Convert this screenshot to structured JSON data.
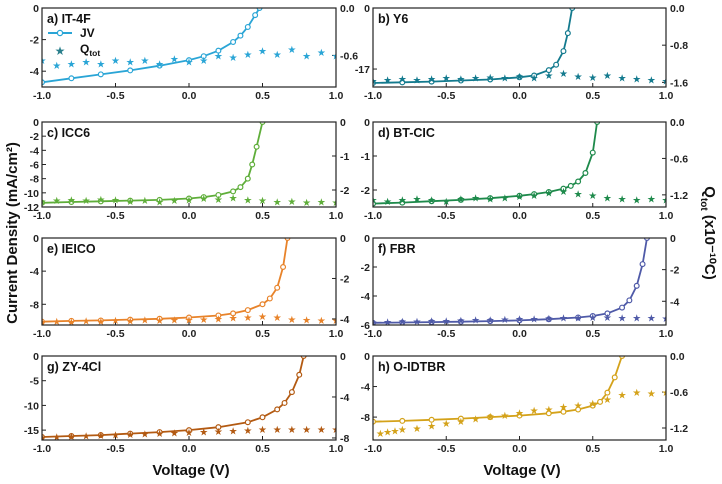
{
  "figure": {
    "xlabel": "Voltage (V)",
    "ylabel_left": "Current Density (mA/cm²)",
    "ylabel_right_main": "Q",
    "ylabel_right_sub": "tot",
    "ylabel_right_tail": " (x10⁻¹⁰C)",
    "legend": {
      "jv_label": "JV",
      "q_label": "Q",
      "q_sub": "tot"
    }
  },
  "chart_data": [
    {
      "id": "a",
      "title": "a) IT-4F",
      "type": "line",
      "color": "#2aa5d6",
      "xlim": [
        -1.0,
        1.0
      ],
      "xticks": [
        -1.0,
        -0.5,
        0.0,
        0.5,
        1.0
      ],
      "ylim_left": [
        -5,
        0
      ],
      "yticks_left": [
        -4,
        -2,
        0
      ],
      "yticklabels_left": [
        "-4",
        "-2",
        "0"
      ],
      "ylim_right": [
        -1.0,
        0.0
      ],
      "yticks_right": [
        -0.6,
        0.0
      ],
      "yticklabels_right": [
        "-0.6",
        "0.0"
      ],
      "jv": {
        "x": [
          -1.0,
          -0.8,
          -0.6,
          -0.4,
          -0.2,
          0.0,
          0.1,
          0.2,
          0.3,
          0.35,
          0.4,
          0.45,
          0.48
        ],
        "y": [
          -4.7,
          -4.45,
          -4.2,
          -3.95,
          -3.65,
          -3.3,
          -3.05,
          -2.7,
          -2.15,
          -1.75,
          -1.2,
          -0.45,
          0.0
        ]
      },
      "qtot": {
        "x": [
          -1.0,
          -0.9,
          -0.8,
          -0.7,
          -0.6,
          -0.5,
          -0.4,
          -0.3,
          -0.2,
          -0.1,
          0.0,
          0.1,
          0.2,
          0.3,
          0.4,
          0.5,
          0.6,
          0.7,
          0.8,
          0.9,
          1.0
        ],
        "y": [
          -0.66,
          -0.72,
          -0.7,
          -0.68,
          -0.7,
          -0.66,
          -0.68,
          -0.66,
          -0.7,
          -0.64,
          -0.68,
          -0.66,
          -0.6,
          -0.62,
          -0.58,
          -0.54,
          -0.58,
          -0.52,
          -0.6,
          -0.56,
          -0.6
        ]
      }
    },
    {
      "id": "b",
      "title": "b) Y6",
      "type": "line",
      "color": "#137a8e",
      "xlim": [
        -1.0,
        1.0
      ],
      "xticks": [
        -1.0,
        -0.5,
        0.0,
        0.5,
        1.0
      ],
      "ylim_left": [
        -22,
        0
      ],
      "yticks_left": [
        -17,
        0
      ],
      "yticklabels_left": [
        "-17",
        "0"
      ],
      "ylim_right": [
        -1.7,
        0.0
      ],
      "yticks_right": [
        -1.6,
        -0.8,
        0.0
      ],
      "yticklabels_right": [
        "-1.6",
        "-0.8",
        "0.0"
      ],
      "jv": {
        "x": [
          -1.0,
          -0.8,
          -0.6,
          -0.4,
          -0.2,
          0.0,
          0.1,
          0.2,
          0.25,
          0.3,
          0.33,
          0.36
        ],
        "y": [
          -20.9,
          -20.7,
          -20.5,
          -20.2,
          -19.9,
          -19.3,
          -18.8,
          -17.3,
          -15.8,
          -12.0,
          -7.0,
          0.0
        ]
      },
      "qtot": {
        "x": [
          -1.0,
          -0.9,
          -0.8,
          -0.7,
          -0.6,
          -0.5,
          -0.4,
          -0.3,
          -0.2,
          -0.1,
          0.0,
          0.1,
          0.2,
          0.3,
          0.4,
          0.5,
          0.6,
          0.7,
          0.8,
          0.9,
          1.0
        ],
        "y": [
          -1.56,
          -1.54,
          -1.52,
          -1.54,
          -1.52,
          -1.5,
          -1.52,
          -1.5,
          -1.48,
          -1.5,
          -1.46,
          -1.5,
          -1.44,
          -1.4,
          -1.46,
          -1.48,
          -1.44,
          -1.5,
          -1.52,
          -1.54,
          -1.56
        ]
      }
    },
    {
      "id": "c",
      "title": "c) ICC6",
      "type": "line",
      "color": "#5fae3a",
      "xlim": [
        -1.0,
        1.0
      ],
      "xticks": [
        -1.0,
        -0.5,
        0.0,
        0.5,
        1.0
      ],
      "ylim_left": [
        -12,
        0
      ],
      "yticks_left": [
        -12,
        -10,
        -8,
        -6,
        -4,
        -2,
        0
      ],
      "yticklabels_left": [
        "-12",
        "-10",
        "-8",
        "-6",
        "-4",
        "-2",
        "0"
      ],
      "ylim_right": [
        -2.5,
        0.0
      ],
      "yticks_right": [
        -2,
        -1,
        0
      ],
      "yticklabels_right": [
        "-2",
        "-1",
        "0"
      ],
      "jv": {
        "x": [
          -1.0,
          -0.8,
          -0.6,
          -0.4,
          -0.2,
          0.0,
          0.1,
          0.2,
          0.3,
          0.35,
          0.4,
          0.43,
          0.46,
          0.5
        ],
        "y": [
          -11.4,
          -11.3,
          -11.2,
          -11.1,
          -11.0,
          -10.8,
          -10.6,
          -10.3,
          -9.8,
          -9.2,
          -8.0,
          -6.0,
          -3.5,
          0.0
        ]
      },
      "qtot": {
        "x": [
          -1.0,
          -0.9,
          -0.8,
          -0.7,
          -0.6,
          -0.5,
          -0.4,
          -0.3,
          -0.2,
          -0.1,
          0.0,
          0.1,
          0.2,
          0.3,
          0.4,
          0.5,
          0.6,
          0.7,
          0.8,
          0.9,
          1.0
        ],
        "y": [
          -2.32,
          -2.3,
          -2.28,
          -2.3,
          -2.26,
          -2.28,
          -2.32,
          -2.3,
          -2.34,
          -2.3,
          -2.28,
          -2.24,
          -2.26,
          -2.22,
          -2.28,
          -2.3,
          -2.34,
          -2.32,
          -2.36,
          -2.34,
          -2.36
        ]
      }
    },
    {
      "id": "d",
      "title": "d) BT-CIC",
      "type": "line",
      "color": "#1e8a4b",
      "xlim": [
        -1.0,
        1.0
      ],
      "xticks": [
        -1.0,
        -0.5,
        0.0,
        0.5,
        1.0
      ],
      "ylim_left": [
        -2.5,
        0
      ],
      "yticks_left": [
        -2,
        -1,
        0
      ],
      "yticklabels_left": [
        "-2",
        "-1",
        "0"
      ],
      "ylim_right": [
        -1.4,
        0.0
      ],
      "yticks_right": [
        -1.2,
        -0.6,
        0.0
      ],
      "yticklabels_right": [
        "-1.2",
        "-0.6",
        "0.0"
      ],
      "jv": {
        "x": [
          -1.0,
          -0.8,
          -0.6,
          -0.4,
          -0.2,
          0.0,
          0.1,
          0.2,
          0.3,
          0.35,
          0.4,
          0.45,
          0.5,
          0.53
        ],
        "y": [
          -2.4,
          -2.37,
          -2.33,
          -2.29,
          -2.24,
          -2.17,
          -2.12,
          -2.06,
          -1.96,
          -1.88,
          -1.75,
          -1.5,
          -0.9,
          0.0
        ]
      },
      "qtot": {
        "x": [
          -1.0,
          -0.9,
          -0.8,
          -0.7,
          -0.6,
          -0.5,
          -0.4,
          -0.3,
          -0.2,
          -0.1,
          0.0,
          0.1,
          0.2,
          0.3,
          0.4,
          0.5,
          0.6,
          0.7,
          0.8,
          0.9,
          1.0
        ],
        "y": [
          -1.28,
          -1.3,
          -1.28,
          -1.26,
          -1.28,
          -1.3,
          -1.26,
          -1.24,
          -1.26,
          -1.24,
          -1.22,
          -1.2,
          -1.16,
          -1.14,
          -1.18,
          -1.2,
          -1.24,
          -1.26,
          -1.28,
          -1.26,
          -1.28
        ]
      }
    },
    {
      "id": "e",
      "title": "e) IEICO",
      "type": "line",
      "color": "#e8832a",
      "xlim": [
        -1.0,
        1.0
      ],
      "xticks": [
        -1.0,
        -0.5,
        0.0,
        0.5,
        1.0
      ],
      "ylim_left": [
        -10.5,
        0
      ],
      "yticks_left": [
        -8,
        -4,
        0
      ],
      "yticklabels_left": [
        "-8",
        "-4",
        "0"
      ],
      "ylim_right": [
        -4.3,
        0.0
      ],
      "yticks_right": [
        -4,
        -2,
        0
      ],
      "yticklabels_right": [
        "-4",
        "-2",
        "0"
      ],
      "jv": {
        "x": [
          -1.0,
          -0.8,
          -0.6,
          -0.4,
          -0.2,
          0.0,
          0.2,
          0.3,
          0.4,
          0.5,
          0.55,
          0.6,
          0.64,
          0.67
        ],
        "y": [
          -10.1,
          -10.0,
          -9.95,
          -9.85,
          -9.75,
          -9.6,
          -9.35,
          -9.1,
          -8.7,
          -8.0,
          -7.3,
          -6.0,
          -3.5,
          0.0
        ]
      },
      "qtot": {
        "x": [
          -1.0,
          -0.9,
          -0.8,
          -0.7,
          -0.6,
          -0.5,
          -0.4,
          -0.3,
          -0.2,
          -0.1,
          0.0,
          0.1,
          0.2,
          0.3,
          0.4,
          0.5,
          0.6,
          0.7,
          0.8,
          0.9,
          1.0
        ],
        "y": [
          -4.12,
          -4.1,
          -4.12,
          -4.08,
          -4.1,
          -4.06,
          -4.08,
          -4.04,
          -4.06,
          -4.02,
          -4.04,
          -4.0,
          -3.98,
          -3.94,
          -3.9,
          -3.86,
          -3.9,
          -4.0,
          -4.04,
          -4.06,
          -4.06
        ]
      }
    },
    {
      "id": "f",
      "title": "f) FBR",
      "type": "line",
      "color": "#4f5aa8",
      "xlim": [
        -1.0,
        1.0
      ],
      "xticks": [
        -1.0,
        -0.5,
        0.0,
        0.5,
        1.0
      ],
      "ylim_left": [
        -6,
        0
      ],
      "yticks_left": [
        -6,
        -4,
        -2,
        0
      ],
      "yticklabels_left": [
        "-6",
        "-4",
        "-2",
        "0"
      ],
      "ylim_right": [
        -5.5,
        0.0
      ],
      "yticks_right": [
        -4,
        -2,
        0
      ],
      "yticklabels_right": [
        "-4",
        "-2",
        "0"
      ],
      "jv": {
        "x": [
          -1.0,
          -0.8,
          -0.6,
          -0.4,
          -0.2,
          0.0,
          0.2,
          0.4,
          0.5,
          0.6,
          0.7,
          0.75,
          0.8,
          0.84,
          0.87
        ],
        "y": [
          -5.85,
          -5.83,
          -5.8,
          -5.77,
          -5.73,
          -5.68,
          -5.6,
          -5.48,
          -5.38,
          -5.2,
          -4.8,
          -4.3,
          -3.3,
          -1.8,
          0.0
        ]
      },
      "qtot": {
        "x": [
          -1.0,
          -0.9,
          -0.8,
          -0.7,
          -0.6,
          -0.5,
          -0.4,
          -0.3,
          -0.2,
          -0.1,
          0.0,
          0.1,
          0.2,
          0.3,
          0.4,
          0.5,
          0.6,
          0.7,
          0.8,
          0.9,
          1.0
        ],
        "y": [
          -5.3,
          -5.28,
          -5.26,
          -5.24,
          -5.22,
          -5.2,
          -5.18,
          -5.16,
          -5.14,
          -5.12,
          -5.1,
          -5.08,
          -5.06,
          -5.04,
          -5.02,
          -5.0,
          -5.0,
          -5.02,
          -5.04,
          -5.04,
          -5.06
        ]
      }
    },
    {
      "id": "g",
      "title": "g) ZY-4Cl",
      "type": "line",
      "color": "#b35a12",
      "xlim": [
        -1.0,
        1.0
      ],
      "xticks": [
        -1.0,
        -0.5,
        0.0,
        0.5,
        1.0
      ],
      "ylim_left": [
        -17,
        0
      ],
      "yticks_left": [
        -15,
        -10,
        -5,
        0
      ],
      "yticklabels_left": [
        "-15",
        "-10",
        "-5",
        "0"
      ],
      "ylim_right": [
        -8.2,
        0.0
      ],
      "yticks_right": [
        -8,
        -4,
        0
      ],
      "yticklabels_right": [
        "-8",
        "-4",
        "0"
      ],
      "jv": {
        "x": [
          -1.0,
          -0.8,
          -0.6,
          -0.4,
          -0.2,
          0.0,
          0.2,
          0.4,
          0.5,
          0.6,
          0.65,
          0.7,
          0.75,
          0.78
        ],
        "y": [
          -16.4,
          -16.2,
          -16.0,
          -15.7,
          -15.4,
          -15.0,
          -14.4,
          -13.4,
          -12.4,
          -10.8,
          -9.5,
          -7.3,
          -3.8,
          0.0
        ]
      },
      "qtot": {
        "x": [
          -1.0,
          -0.9,
          -0.8,
          -0.7,
          -0.6,
          -0.5,
          -0.4,
          -0.3,
          -0.2,
          -0.1,
          0.0,
          0.1,
          0.2,
          0.3,
          0.4,
          0.5,
          0.6,
          0.7,
          0.8,
          0.9,
          1.0
        ],
        "y": [
          -7.9,
          -7.85,
          -7.8,
          -7.75,
          -7.7,
          -7.65,
          -7.6,
          -7.55,
          -7.5,
          -7.45,
          -7.4,
          -7.35,
          -7.3,
          -7.25,
          -7.2,
          -7.15,
          -7.15,
          -7.15,
          -7.15,
          -7.15,
          -7.15
        ]
      }
    },
    {
      "id": "h",
      "title": "h) O-IDTBR",
      "type": "line",
      "color": "#d4a21a",
      "xlim": [
        -1.0,
        1.0
      ],
      "xticks": [
        -1.0,
        -0.5,
        0.0,
        0.5,
        1.0
      ],
      "ylim_left": [
        -11,
        0
      ],
      "yticks_left": [
        -8,
        -4,
        0
      ],
      "yticklabels_left": [
        "-8",
        "-4",
        "0"
      ],
      "ylim_right": [
        -1.4,
        0.0
      ],
      "yticks_right": [
        -1.2,
        -0.6,
        0.0
      ],
      "yticklabels_right": [
        "-1.2",
        "-0.6",
        "0.0"
      ],
      "jv": {
        "x": [
          -1.0,
          -0.8,
          -0.6,
          -0.4,
          -0.2,
          0.0,
          0.2,
          0.3,
          0.4,
          0.5,
          0.55,
          0.6,
          0.65,
          0.7
        ],
        "y": [
          -8.6,
          -8.5,
          -8.35,
          -8.2,
          -8.0,
          -7.8,
          -7.5,
          -7.3,
          -7.0,
          -6.5,
          -6.0,
          -4.8,
          -2.8,
          0.0
        ]
      },
      "qtot": {
        "x": [
          -1.0,
          -0.95,
          -0.9,
          -0.85,
          -0.8,
          -0.7,
          -0.6,
          -0.5,
          -0.4,
          -0.3,
          -0.2,
          -0.1,
          0.0,
          0.1,
          0.2,
          0.3,
          0.4,
          0.5,
          0.6,
          0.7,
          0.8,
          0.9,
          1.0
        ],
        "y": [
          -1.4,
          -1.28,
          -1.26,
          -1.24,
          -1.22,
          -1.2,
          -1.16,
          -1.12,
          -1.08,
          -1.04,
          -1.0,
          -0.98,
          -0.94,
          -0.9,
          -0.88,
          -0.84,
          -0.82,
          -0.78,
          -0.72,
          -0.64,
          -0.6,
          -0.62,
          -0.6
        ]
      }
    }
  ]
}
